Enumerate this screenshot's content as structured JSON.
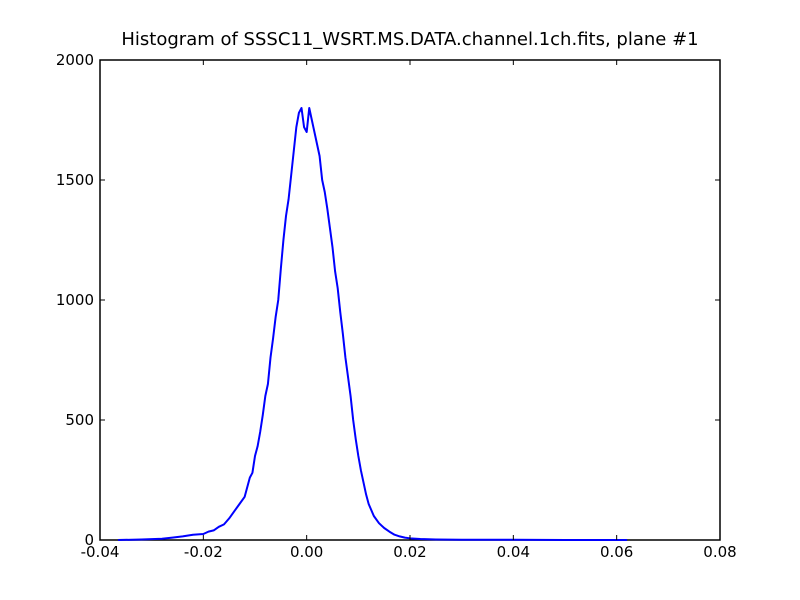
{
  "chart_data": {
    "type": "line",
    "title": "Histogram of SSSC11_WSRT.MS.DATA.channel.1ch.fits, plane #1",
    "xlabel": "",
    "ylabel": "",
    "xlim": [
      -0.04,
      0.08
    ],
    "ylim": [
      0,
      2000
    ],
    "x_ticks": [
      -0.04,
      -0.02,
      0.0,
      0.02,
      0.04,
      0.06,
      0.08
    ],
    "x_tick_labels": [
      "-0.04",
      "-0.02",
      "0.00",
      "0.02",
      "0.04",
      "0.06",
      "0.08"
    ],
    "y_ticks": [
      0,
      500,
      1000,
      1500,
      2000
    ],
    "y_tick_labels": [
      "0",
      "500",
      "1000",
      "1500",
      "2000"
    ],
    "grid": false,
    "legend": "none",
    "series": [
      {
        "color": "#0000ff",
        "x": [
          -0.0365,
          -0.032,
          -0.028,
          -0.026,
          -0.024,
          -0.022,
          -0.02,
          -0.019,
          -0.018,
          -0.017,
          -0.016,
          -0.015,
          -0.014,
          -0.013,
          -0.012,
          -0.011,
          -0.0105,
          -0.01,
          -0.0095,
          -0.009,
          -0.0085,
          -0.008,
          -0.0075,
          -0.007,
          -0.0065,
          -0.006,
          -0.0055,
          -0.005,
          -0.0045,
          -0.004,
          -0.0035,
          -0.003,
          -0.0025,
          -0.002,
          -0.0015,
          -0.001,
          -0.0005,
          0.0,
          0.0005,
          0.001,
          0.0015,
          0.002,
          0.0025,
          0.003,
          0.0035,
          0.004,
          0.0045,
          0.005,
          0.0055,
          0.006,
          0.0065,
          0.007,
          0.0075,
          0.008,
          0.0085,
          0.009,
          0.0095,
          0.01,
          0.0105,
          0.011,
          0.0115,
          0.012,
          0.013,
          0.014,
          0.015,
          0.016,
          0.017,
          0.018,
          0.019,
          0.02,
          0.022,
          0.025,
          0.03,
          0.04,
          0.05,
          0.06,
          0.062
        ],
        "y": [
          0,
          2,
          5,
          10,
          15,
          22,
          25,
          35,
          40,
          55,
          65,
          90,
          120,
          150,
          180,
          260,
          280,
          350,
          390,
          450,
          520,
          600,
          650,
          760,
          840,
          930,
          1000,
          1130,
          1250,
          1350,
          1420,
          1520,
          1620,
          1720,
          1780,
          1800,
          1720,
          1700,
          1800,
          1750,
          1700,
          1650,
          1600,
          1500,
          1450,
          1380,
          1300,
          1220,
          1120,
          1050,
          950,
          860,
          760,
          680,
          600,
          500,
          420,
          350,
          290,
          240,
          190,
          150,
          100,
          70,
          50,
          35,
          22,
          15,
          10,
          7,
          4,
          2,
          1,
          1,
          0,
          0,
          0
        ]
      }
    ]
  }
}
